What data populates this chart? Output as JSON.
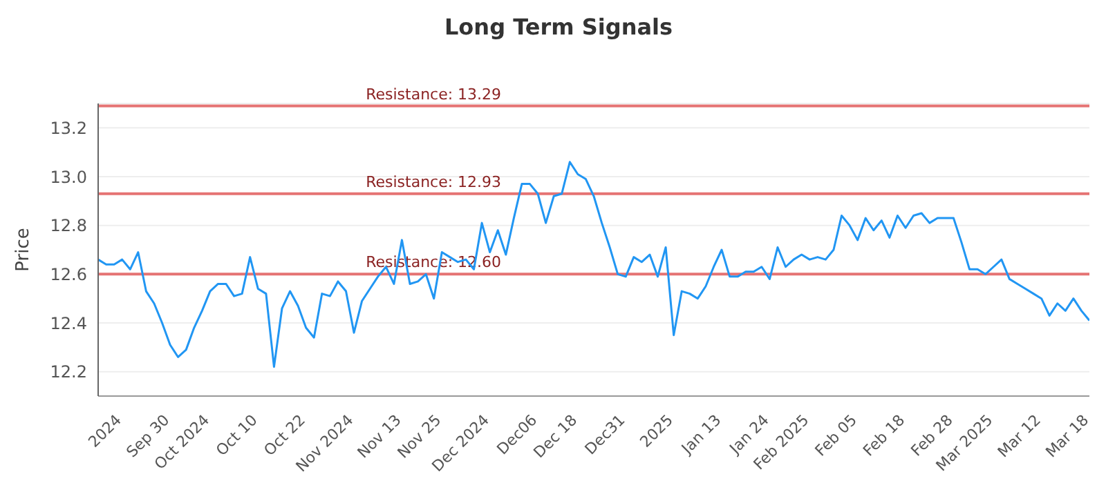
{
  "chart_data": {
    "type": "line",
    "title": "Long Term Signals",
    "ylabel": "Price",
    "categories": [
      null,
      null,
      null,
      "2024",
      null,
      null,
      null,
      null,
      null,
      "Sep 30",
      null,
      null,
      null,
      null,
      "Oct 2024",
      null,
      null,
      null,
      null,
      null,
      "Oct 10",
      null,
      null,
      null,
      null,
      null,
      "Oct 22",
      null,
      null,
      null,
      null,
      null,
      "Nov 2024",
      null,
      null,
      null,
      null,
      null,
      "Nov 13",
      null,
      null,
      null,
      null,
      "Nov 25",
      null,
      null,
      null,
      null,
      null,
      "Dec 2024",
      null,
      null,
      null,
      null,
      null,
      "Dec06",
      null,
      null,
      null,
      null,
      "Dec 18",
      null,
      null,
      null,
      null,
      null,
      "Dec31",
      null,
      null,
      null,
      null,
      null,
      "2025",
      null,
      null,
      null,
      null,
      null,
      "Jan 13",
      null,
      null,
      null,
      null,
      null,
      "Jan 24",
      null,
      null,
      null,
      null,
      "Feb 2025",
      null,
      null,
      null,
      null,
      null,
      "Feb 05",
      null,
      null,
      null,
      null,
      null,
      "Feb 18",
      null,
      null,
      null,
      null,
      null,
      "Feb 28",
      null,
      null,
      null,
      null,
      "Mar 2025",
      null,
      null,
      null,
      null,
      null,
      "Mar 12",
      null,
      null,
      null,
      null,
      null,
      "Mar 18"
    ],
    "series": [
      {
        "color": "#2196f3",
        "values": [
          12.66,
          12.64,
          12.64,
          12.66,
          12.62,
          12.69,
          12.53,
          12.48,
          12.4,
          12.31,
          12.26,
          12.29,
          12.38,
          12.45,
          12.53,
          12.56,
          12.56,
          12.51,
          12.52,
          12.67,
          12.54,
          12.52,
          12.22,
          12.46,
          12.53,
          12.47,
          12.38,
          12.34,
          12.52,
          12.51,
          12.57,
          12.53,
          12.36,
          12.49,
          12.54,
          12.59,
          12.63,
          12.56,
          12.74,
          12.56,
          12.57,
          12.6,
          12.5,
          12.69,
          12.67,
          12.65,
          12.66,
          12.62,
          12.81,
          12.69,
          12.78,
          12.68,
          12.83,
          12.97,
          12.97,
          12.93,
          12.81,
          12.92,
          12.93,
          13.06,
          13.01,
          12.99,
          12.92,
          12.81,
          12.71,
          12.6,
          12.59,
          12.67,
          12.65,
          12.68,
          12.59,
          12.71,
          12.35,
          12.53,
          12.52,
          12.5,
          12.55,
          12.63,
          12.7,
          12.59,
          12.59,
          12.61,
          12.61,
          12.63,
          12.58,
          12.71,
          12.63,
          12.66,
          12.68,
          12.66,
          12.67,
          12.66,
          12.7,
          12.84,
          12.8,
          12.74,
          12.83,
          12.78,
          12.82,
          12.75,
          12.84,
          12.79,
          12.84,
          12.85,
          12.81,
          12.83,
          12.83,
          12.83,
          12.73,
          12.62,
          12.62,
          12.6,
          12.63,
          12.66,
          12.58,
          12.56,
          12.54,
          12.52,
          12.5,
          12.43,
          12.48,
          12.45,
          12.5,
          12.45,
          12.41
        ]
      }
    ],
    "ylim": [
      12.1,
      13.3
    ],
    "yticks": [
      12.2,
      12.4,
      12.6,
      12.8,
      {
        "value": 13,
        "label": "13.0"
      },
      13.2
    ],
    "grid": "y",
    "legend": false,
    "marker": "none",
    "line_style": "solid",
    "ref_lines": [
      {
        "axis": "y",
        "value": 13.29,
        "label": "Resistance: 13.29",
        "color": "#e57373"
      },
      {
        "axis": "y",
        "value": 12.93,
        "label": "Resistance: 12.93",
        "color": "#e57373"
      },
      {
        "axis": "y",
        "value": 12.6,
        "label": "Resistance: 12.60",
        "color": "#e57373"
      }
    ]
  }
}
